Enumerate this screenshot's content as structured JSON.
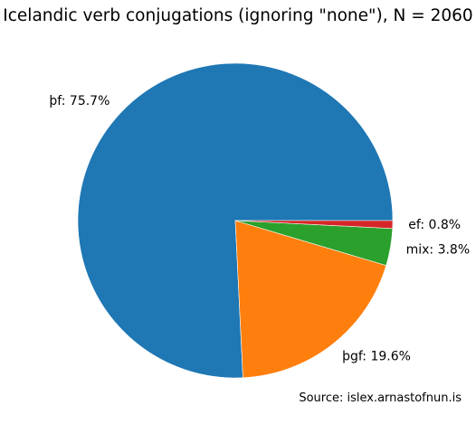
{
  "chart_data": {
    "type": "pie",
    "title": "Icelandic verb conjugations (ignoring \"none\"), N = 2060",
    "slices": [
      {
        "label": "þf: 75.7%",
        "value": 75.7,
        "color": "#1f77b4"
      },
      {
        "label": "þgf: 19.6%",
        "value": 19.6,
        "color": "#ff7f0e"
      },
      {
        "label": "mix: 3.8%",
        "value": 3.8,
        "color": "#2ca02c"
      },
      {
        "label": "ef: 0.8%",
        "value": 0.8,
        "color": "#d62728"
      }
    ],
    "start_angle": "3 o'clock",
    "direction": "counterclockwise",
    "source_note": "Source: islex.arnastofnun.is"
  }
}
